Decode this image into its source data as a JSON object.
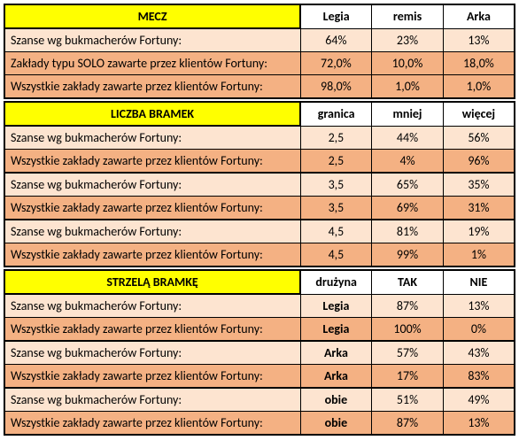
{
  "section1": {
    "title": "MECZ",
    "headers": [
      "Legia",
      "remis",
      "Arka"
    ],
    "rows": [
      {
        "label": "Szanse wg bukmacherów Fortuny:",
        "v": [
          "64%",
          "23%",
          "13%"
        ],
        "cls": "light"
      },
      {
        "label": "Zakłady typu SOLO zawarte przez klientów Fortuny:",
        "v": [
          "72,0%",
          "10,0%",
          "18,0%"
        ],
        "cls": "dark"
      },
      {
        "label": "Wszystkie zakłady zawarte przez klientów Fortuny:",
        "v": [
          "98,0%",
          "1,0%",
          "1,0%"
        ],
        "cls": "dark"
      }
    ]
  },
  "section2": {
    "title": "LICZBA BRAMEK",
    "headers": [
      "granica",
      "mniej",
      "więcej"
    ],
    "rows": [
      {
        "label": "Szanse wg bukmacherów Fortuny:",
        "g": "2,5",
        "v": [
          "44%",
          "56%"
        ],
        "cls": "light",
        "sep": false
      },
      {
        "label": "Wszystkie zakłady zawarte przez klientów Fortuny:",
        "g": "2,5",
        "v": [
          "4%",
          "96%"
        ],
        "cls": "dark",
        "sep": false
      },
      {
        "label": "Szanse wg bukmacherów Fortuny:",
        "g": "3,5",
        "v": [
          "65%",
          "35%"
        ],
        "cls": "light",
        "sep": true
      },
      {
        "label": "Wszystkie zakłady zawarte przez klientów Fortuny:",
        "g": "3,5",
        "v": [
          "69%",
          "31%"
        ],
        "cls": "dark",
        "sep": false
      },
      {
        "label": "Szanse wg bukmacherów Fortuny:",
        "g": "4,5",
        "v": [
          "81%",
          "19%"
        ],
        "cls": "light",
        "sep": true
      },
      {
        "label": "Wszystkie zakłady zawarte przez klientów Fortuny:",
        "g": "4,5",
        "v": [
          "99%",
          "1%"
        ],
        "cls": "dark",
        "sep": false
      }
    ]
  },
  "section3": {
    "title": "STRZELĄ BRAMKĘ",
    "headers": [
      "drużyna",
      "TAK",
      "NIE"
    ],
    "rows": [
      {
        "label": "Szanse wg bukmacherów Fortuny:",
        "t": "Legia",
        "v": [
          "87%",
          "13%"
        ],
        "cls": "light",
        "sep": false
      },
      {
        "label": "Wszystkie zakłady zawarte przez klientów Fortuny:",
        "t": "Legia",
        "v": [
          "100%",
          "0%"
        ],
        "cls": "dark",
        "sep": false
      },
      {
        "label": "Szanse wg bukmacherów Fortuny:",
        "t": "Arka",
        "v": [
          "57%",
          "43%"
        ],
        "cls": "light",
        "sep": true
      },
      {
        "label": "Wszystkie zakłady zawarte przez klientów Fortuny:",
        "t": "Arka",
        "v": [
          "17%",
          "83%"
        ],
        "cls": "dark",
        "sep": false
      },
      {
        "label": "Szanse wg bukmacherów Fortuny:",
        "t": "obie",
        "v": [
          "51%",
          "49%"
        ],
        "cls": "light",
        "sep": true
      },
      {
        "label": "Wszystkie zakłady zawarte przez klientów Fortuny:",
        "t": "obie",
        "v": [
          "87%",
          "13%"
        ],
        "cls": "dark",
        "sep": false
      }
    ]
  },
  "styles": {
    "yellow": "#ffff00",
    "light": "#fde4d0",
    "dark": "#f4b183",
    "border": "#000000",
    "text": "#000000",
    "font_size": 14
  }
}
